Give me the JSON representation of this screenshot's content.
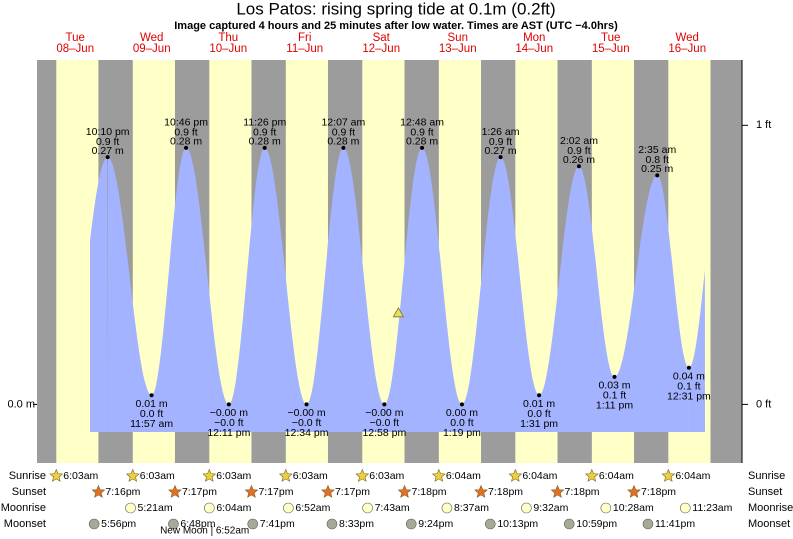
{
  "chart_data": {
    "type": "area",
    "title": "Los Patos: rising  spring tide at 0.1m (0.2ft)",
    "subtitle": "Image captured 4 hours and 25 minutes after low water. Times are AST (UTC −4.0hrs)",
    "days": [
      {
        "dow": "Tue",
        "date": "08–Jun"
      },
      {
        "dow": "Wed",
        "date": "09–Jun"
      },
      {
        "dow": "Thu",
        "date": "10–Jun"
      },
      {
        "dow": "Fri",
        "date": "11–Jun"
      },
      {
        "dow": "Sat",
        "date": "12–Jun"
      },
      {
        "dow": "Sun",
        "date": "13–Jun"
      },
      {
        "dow": "Mon",
        "date": "14–Jun"
      },
      {
        "dow": "Tue",
        "date": "15–Jun"
      },
      {
        "dow": "Wed",
        "date": "16–Jun"
      }
    ],
    "tide": {
      "color": "#a3b3ff",
      "day": [
        0,
        1,
        1,
        2,
        2,
        3,
        4,
        4,
        5,
        5,
        6,
        6,
        7,
        7,
        8,
        8
      ],
      "times": [
        "10:10 pm",
        "11:57 am",
        "10:46 pm",
        "12:11 pm",
        "11:26 pm",
        "12:34 pm",
        "12:07 am",
        "12:58 pm",
        "12:48 am",
        "1:19 pm",
        "1:26 am",
        "1:31 pm",
        "2:02 am",
        "1:11 pm",
        "2:35 am",
        "12:31 pm"
      ],
      "values": [
        0.27,
        0.01,
        0.28,
        0,
        0.28,
        0,
        0.28,
        0,
        0.28,
        0,
        0.27,
        0.01,
        0.26,
        0.03,
        0.25,
        0.04
      ],
      "value_labels": [
        "0.27 m",
        "0.01 m",
        "0.28 m",
        "−0.00 m",
        "0.28 m",
        "−0.00 m",
        "0.28 m",
        "−0.00 m",
        "0.28 m",
        "0.00 m",
        "0.27 m",
        "0.01 m",
        "0.26 m",
        "0.03 m",
        "0.25 m",
        "0.04 m"
      ],
      "ft_labels": [
        "0.9 ft",
        "0.0 ft",
        "0.9 ft",
        "−0.0 ft",
        "0.9 ft",
        "−0.0 ft",
        "0.9 ft",
        "−0.0 ft",
        "0.9 ft",
        "0.0 ft",
        "0.9 ft",
        "0.0 ft",
        "0.9 ft",
        "0.1 ft",
        "0.8 ft",
        "0.1 ft"
      ]
    },
    "now_marker": {
      "day": 4,
      "hour": 17.38,
      "value": 0.1,
      "color": "#e8e060"
    },
    "ylim": [
      -0.064,
      0.376
    ],
    "yticks": [
      {
        "value": 0,
        "label": "0.0 m"
      }
    ],
    "y2lim": [
      -0.21,
      1.234
    ],
    "y2ticks": [
      {
        "value": 0,
        "label": "0 ft"
      },
      {
        "value": 1,
        "label": "1 ft"
      }
    ],
    "night_color": "#9c9c9c",
    "day_color": "#ffffc8",
    "almanac": [
      {
        "label": "Sunrise",
        "icon": "star",
        "color": "#e8d040",
        "times": [
          "6:03am",
          "6:03am",
          "6:03am",
          "6:03am",
          "6:03am",
          "6:04am",
          "6:04am",
          "6:04am",
          "6:04am"
        ]
      },
      {
        "label": "Sunset",
        "icon": "star",
        "color": "#e07028",
        "times": [
          "7:16pm",
          "7:17pm",
          "7:17pm",
          "7:17pm",
          "7:18pm",
          "7:18pm",
          "7:18pm",
          "7:18pm",
          null
        ]
      },
      {
        "label": "Moonrise",
        "icon": "circle",
        "color": "#ffffc8",
        "times": [
          null,
          "5:21am",
          "6:04am",
          "6:52am",
          "7:43am",
          "8:37am",
          "9:32am",
          "10:28am",
          "11:23am"
        ]
      },
      {
        "label": "Moonset",
        "icon": "circle",
        "color": "#a8a898",
        "times": [
          "5:56pm",
          "6:48pm",
          "7:41pm",
          "8:33pm",
          "9:24pm",
          "10:13pm",
          "10:59pm",
          "11:41pm",
          null
        ]
      }
    ],
    "moon_phase": {
      "name": "New Moon",
      "day": 2,
      "time": "6:52am"
    }
  }
}
